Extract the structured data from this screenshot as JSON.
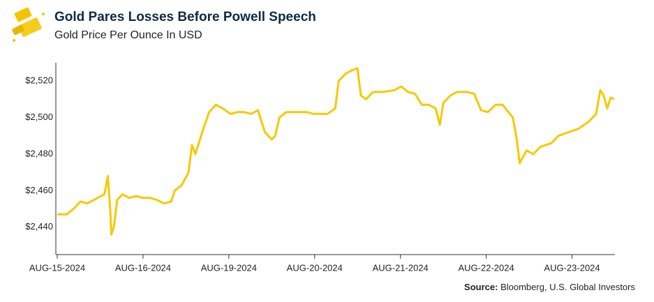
{
  "chart_data": {
    "type": "line",
    "title": "Gold Pares Losses Before Powell Speech",
    "subtitle": "Gold Price Per Ounce In USD",
    "source_label": "Source:",
    "source": "Bloomberg, U.S. Global Investors",
    "xlim": [
      0,
      6.5
    ],
    "xticks": [
      {
        "value": 0,
        "label": "AUG-15-2024"
      },
      {
        "value": 1,
        "label": "AUG-16-2024"
      },
      {
        "value": 2,
        "label": "AUG-19-2024"
      },
      {
        "value": 3,
        "label": "AUG-20-2024"
      },
      {
        "value": 4,
        "label": "AUG-21-2024"
      },
      {
        "value": 5,
        "label": "AUG-22-2024"
      },
      {
        "value": 6,
        "label": "AUG-23-2024"
      }
    ],
    "ylim": [
      2425,
      2530
    ],
    "yticks": [
      {
        "value": 2440,
        "label": "$2,440"
      },
      {
        "value": 2460,
        "label": "$2,460"
      },
      {
        "value": 2480,
        "label": "$2,480"
      },
      {
        "value": 2500,
        "label": "$2,500"
      },
      {
        "value": 2520,
        "label": "$2,520"
      }
    ],
    "grid": false,
    "series": [
      {
        "color": "#f7c900",
        "x": [
          0,
          0.11,
          0.19,
          0.27,
          0.35,
          0.47,
          0.55,
          0.59,
          0.62,
          0.63,
          0.66,
          0.7,
          0.76,
          0.84,
          0.92,
          1,
          1.08,
          1.16,
          1.24,
          1.33,
          1.37,
          1.45,
          1.53,
          1.57,
          1.61,
          1.69,
          1.77,
          1.85,
          1.93,
          2.02,
          2.1,
          2.18,
          2.26,
          2.34,
          2.42,
          2.5,
          2.54,
          2.59,
          2.67,
          2.75,
          2.83,
          2.91,
          2.99,
          3.07,
          3.15,
          3.24,
          3.28,
          3.36,
          3.44,
          3.5,
          3.54,
          3.6,
          3.68,
          3.8,
          3.93,
          4.01,
          4.09,
          4.17,
          4.25,
          4.33,
          4.41,
          4.46,
          4.5,
          4.58,
          4.66,
          4.78,
          4.86,
          4.94,
          5.02,
          5.11,
          5.19,
          5.31,
          5.35,
          5.39,
          5.47,
          5.55,
          5.63,
          5.76,
          5.84,
          5.96,
          6.08,
          6.2,
          6.28,
          6.33,
          6.37,
          6.41,
          6.45,
          6.49
        ],
        "values": [
          2447,
          2447,
          2450,
          2454,
          2453,
          2456,
          2458,
          2468,
          2448,
          2436,
          2440,
          2455,
          2458,
          2456,
          2457,
          2456,
          2456,
          2455,
          2453,
          2454,
          2460,
          2463,
          2470,
          2485,
          2480,
          2492,
          2503,
          2507,
          2505,
          2502,
          2503,
          2503,
          2502,
          2504,
          2492,
          2488,
          2490,
          2500,
          2503,
          2503,
          2503,
          2503,
          2502,
          2502,
          2502,
          2505,
          2520,
          2524,
          2526,
          2527,
          2512,
          2510,
          2514,
          2514,
          2515,
          2517,
          2514,
          2513,
          2507,
          2507,
          2505,
          2496,
          2508,
          2512,
          2514,
          2514,
          2513,
          2504,
          2503,
          2507,
          2507,
          2500,
          2490,
          2475,
          2482,
          2480,
          2484,
          2486,
          2490,
          2492,
          2494,
          2498,
          2502,
          2515,
          2512,
          2505,
          2511,
          2510
        ]
      }
    ]
  }
}
